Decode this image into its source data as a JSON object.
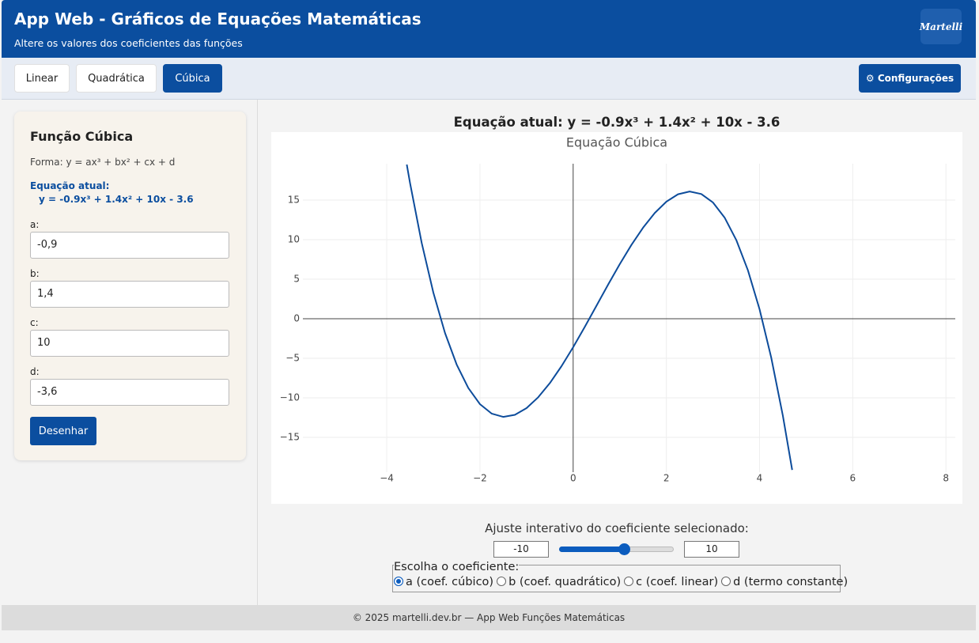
{
  "header": {
    "title": "App Web - Gráficos de Equações Matemáticas",
    "subtitle": "Altere os valores dos coeficientes das funções",
    "logo": "Martelli"
  },
  "tabs": [
    "Linear",
    "Quadrática",
    "Cúbica"
  ],
  "settings_button": "⚙ Configurações",
  "panel": {
    "title": "Função Cúbica",
    "form": "Forma: y = ax³ + bx² + cx + d",
    "equation_label": "Equação atual:",
    "equation": "y = -0.9x³ + 1.4x² + 10x - 3.6",
    "fields": [
      {
        "label": "a:",
        "value": "-0,9"
      },
      {
        "label": "b:",
        "value": "1,4"
      },
      {
        "label": "c:",
        "value": "10"
      },
      {
        "label": "d:",
        "value": "-3,6"
      }
    ],
    "button": "Desenhar"
  },
  "main_equation": "Equação atual: y = -0.9x³ + 1.4x² + 10x - 3.6",
  "chart_data": {
    "type": "line",
    "title": "Equação Cúbica",
    "color": "#0d4c9b",
    "grid": true,
    "zeroline": true,
    "x": [
      -3.57,
      -3.5,
      -3.25,
      -3,
      -2.75,
      -2.5,
      -2.25,
      -2,
      -1.75,
      -1.5,
      -1.25,
      -1,
      -0.75,
      -0.5,
      -0.25,
      0,
      0.25,
      0.5,
      0.75,
      1,
      1.25,
      1.5,
      1.75,
      2,
      2.25,
      2.5,
      2.75,
      3,
      3.25,
      3.5,
      3.75,
      4,
      4.25,
      4.5,
      4.7
    ],
    "values": [
      19.49,
      17.14,
      9.58,
      3.3,
      -1.8,
      -5.79,
      -8.76,
      -10.8,
      -11.99,
      -12.41,
      -12.15,
      -11.3,
      -9.93,
      -8.14,
      -6.0,
      -3.6,
      -1.03,
      1.64,
      4.31,
      6.9,
      9.33,
      11.51,
      13.36,
      14.8,
      15.74,
      16.09,
      15.77,
      14.7,
      12.79,
      9.96,
      6.13,
      1.2,
      -4.9,
      -12.26,
      -19.12
    ],
    "xlim": [
      -5.8,
      8.2
    ],
    "ylim": [
      -19.4,
      19.6
    ],
    "xticks": [
      {
        "value": -4,
        "label": "−4"
      },
      {
        "value": -2,
        "label": "−2"
      },
      0,
      2,
      4,
      6,
      8
    ],
    "yticks": [
      {
        "value": -15,
        "label": "−15"
      },
      {
        "value": -10,
        "label": "−10"
      },
      {
        "value": -5,
        "label": "−5"
      },
      0,
      5,
      10,
      15
    ]
  },
  "slider": {
    "label": "Ajuste interativo do coeficiente selecionado:",
    "min_box": "-10",
    "max_box": "10"
  },
  "radio": {
    "legend": "Escolha o coeficiente:",
    "options": [
      "a (coef. cúbico)",
      "b (coef. quadrático)",
      "c (coef. linear)",
      "d (termo constante)"
    ]
  },
  "footer": "© 2025 martelli.dev.br — App Web Funções Matemáticas"
}
